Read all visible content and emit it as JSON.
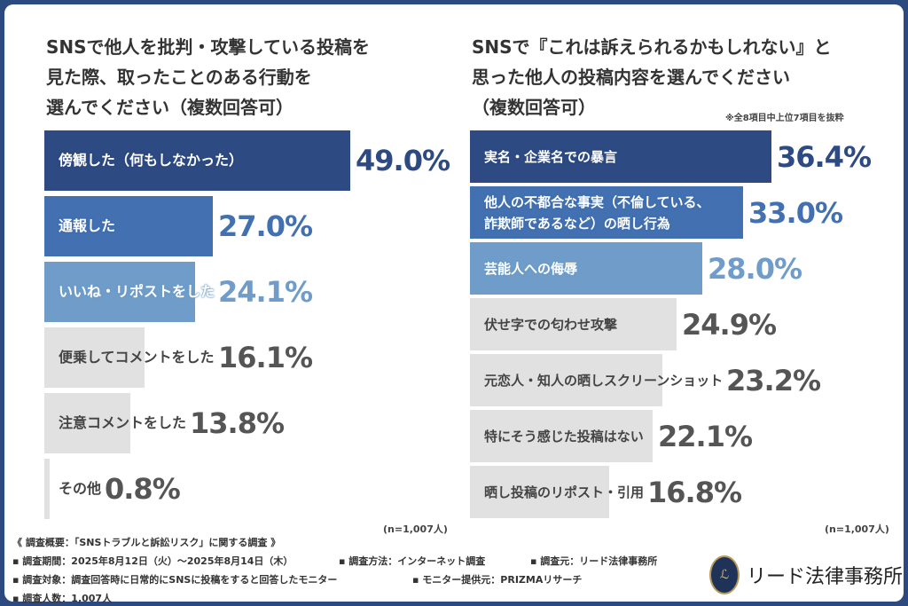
{
  "colors": {
    "frame": "#2d4a80",
    "dark": "#2e4a82",
    "mid": "#4270b0",
    "light": "#6f9cc8",
    "gray": "#e1e1e1",
    "gray_text": "#555555"
  },
  "chart_data": [
    {
      "type": "bar",
      "orientation": "horizontal",
      "title": "SNSで他人を批判・攻撃している投稿を\n見た際、取ったことのある行動を\n選んでください（複数回答可）",
      "categories": [
        "傍観した（何もしなかった）",
        "通報した",
        "いいね・リポストをした",
        "便乗してコメントをした",
        "注意コメントをした",
        "その他"
      ],
      "values": [
        49.0,
        27.0,
        24.1,
        16.1,
        13.8,
        0.8
      ],
      "value_labels": [
        "49.0%",
        "27.0%",
        "24.1%",
        "16.1%",
        "13.8%",
        "0.8%"
      ],
      "bar_colors": [
        "#2e4a82",
        "#4270b0",
        "#6f9cc8",
        "#e1e1e1",
        "#e1e1e1",
        "#e1e1e1"
      ],
      "sample": "(n=1,007人)",
      "grid": false
    },
    {
      "type": "bar",
      "orientation": "horizontal",
      "title": "SNSで『これは訴えられるかもしれない』と\n思った他人の投稿内容を選んでください\n（複数回答可）",
      "note": "※全8項目中上位7項目を抜粋",
      "categories": [
        "実名・企業名での暴言",
        "他人の不都合な事実（不倫している、\n詐欺師であるなど）の晒し行為",
        "芸能人への侮辱",
        "伏せ字での匂わせ攻撃",
        "元恋人・知人の晒しスクリーンショット",
        "特にそう感じた投稿はない",
        "晒し投稿のリポスト・引用"
      ],
      "values": [
        36.4,
        33.0,
        28.0,
        24.9,
        23.2,
        22.1,
        16.8
      ],
      "value_labels": [
        "36.4%",
        "33.0%",
        "28.0%",
        "24.9%",
        "23.2%",
        "22.1%",
        "16.8%"
      ],
      "bar_colors": [
        "#2e4a82",
        "#4270b0",
        "#6f9cc8",
        "#e1e1e1",
        "#e1e1e1",
        "#e1e1e1",
        "#e1e1e1"
      ],
      "sample": "(n=1,007人)",
      "grid": false
    }
  ],
  "footer": {
    "heading": "《 調査概要：「SNSトラブルと訴訟リスク」に関する調査 》",
    "period": "▪ 調査期間：2025年8月12日（火）～2025年8月14日（木）",
    "method": "▪ 調査方法：インターネット調査",
    "source": "▪ 調査元：リード法律事務所",
    "target": "▪ 調査対象：調査回答時に日常的にSNSに投稿をすると回答したモニター",
    "provider": "▪ モニター提供元：PRIZMAリサーチ",
    "count": "▪ 調査人数：1,007人"
  },
  "logo": {
    "mark": "LL",
    "name": "リード法律事務所"
  }
}
